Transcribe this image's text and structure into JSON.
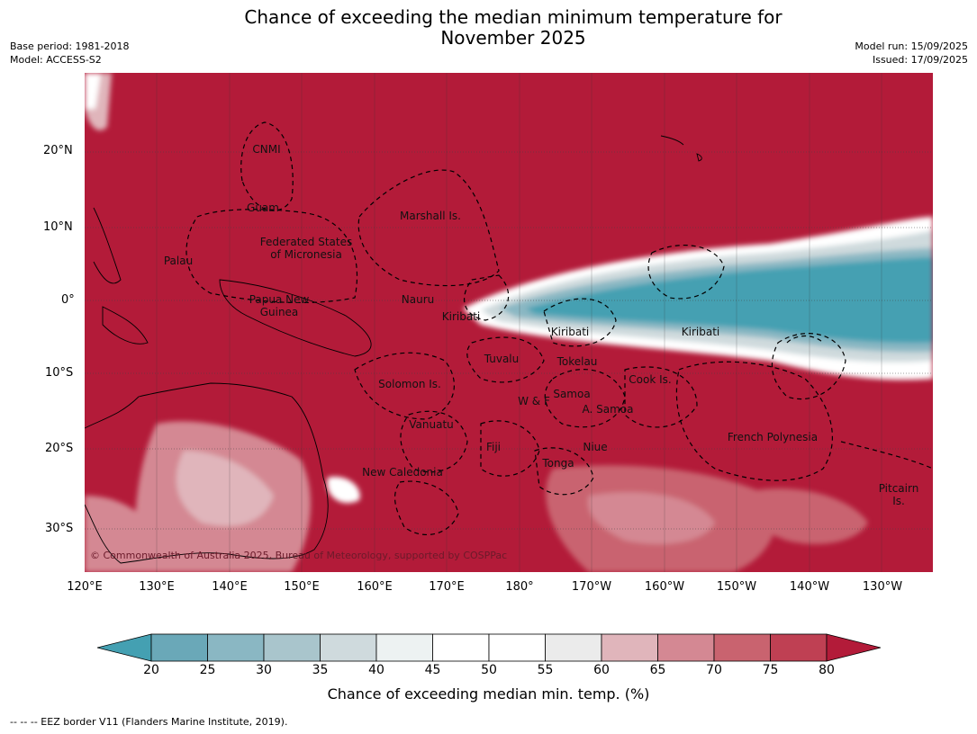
{
  "header": {
    "title_line1": "Chance of exceeding the median minimum temperature for",
    "title_line2": "November 2025",
    "base_period": "Base period: 1981-2018",
    "model": "Model: ACCESS-S2",
    "model_run": "Model run: 15/09/2025",
    "issued": "Issued: 17/09/2025"
  },
  "map": {
    "lat_labels": [
      "20°N",
      "10°N",
      "0°",
      "10°S",
      "20°S",
      "30°S"
    ],
    "lon_labels": [
      "120°E",
      "130°E",
      "140°E",
      "150°E",
      "160°E",
      "170°E",
      "180°",
      "170°W",
      "160°W",
      "150°W",
      "140°W",
      "130°W"
    ],
    "regions": [
      "CNMI",
      "Guam",
      "Marshall Is.",
      "Federated States",
      "of Micronesia",
      "Palau",
      "Papua New",
      "Guinea",
      "Nauru",
      "Kiribati",
      "Kiribati",
      "Kiribati",
      "Tuvalu",
      "Tokelau",
      "Cook Is.",
      "Solomon Is.",
      "Samoa",
      "W & F",
      "A. Samoa",
      "Vanuatu",
      "Fiji",
      "Niue",
      "French Polynesia",
      "Tonga",
      "New Caledonia",
      "Pitcairn",
      "Is."
    ],
    "copyright": "© Commonwealth of Australia 2025, Bureau of Meteorology, supported by COSPPac",
    "dominant_color": "#b31b39",
    "cool_color": "#44a0b2"
  },
  "colorbar": {
    "ticks": [
      "20",
      "25",
      "30",
      "35",
      "40",
      "45",
      "50",
      "55",
      "60",
      "65",
      "70",
      "75",
      "80"
    ],
    "colors": [
      "#44a0b2",
      "#6aa8b8",
      "#8ab7c3",
      "#a9c5cc",
      "#cfdadd",
      "#edf2f2",
      "#ffffff",
      "#ffffff",
      "#ebebeb",
      "#e0b5bb",
      "#d48893",
      "#c9636f",
      "#bf4053",
      "#b31b39"
    ],
    "title": "Chance of exceeding median min. temp. (%)"
  },
  "footer": {
    "legend": "--  --  -- EEZ border V11 (Flanders Marine Institute, 2019)."
  }
}
